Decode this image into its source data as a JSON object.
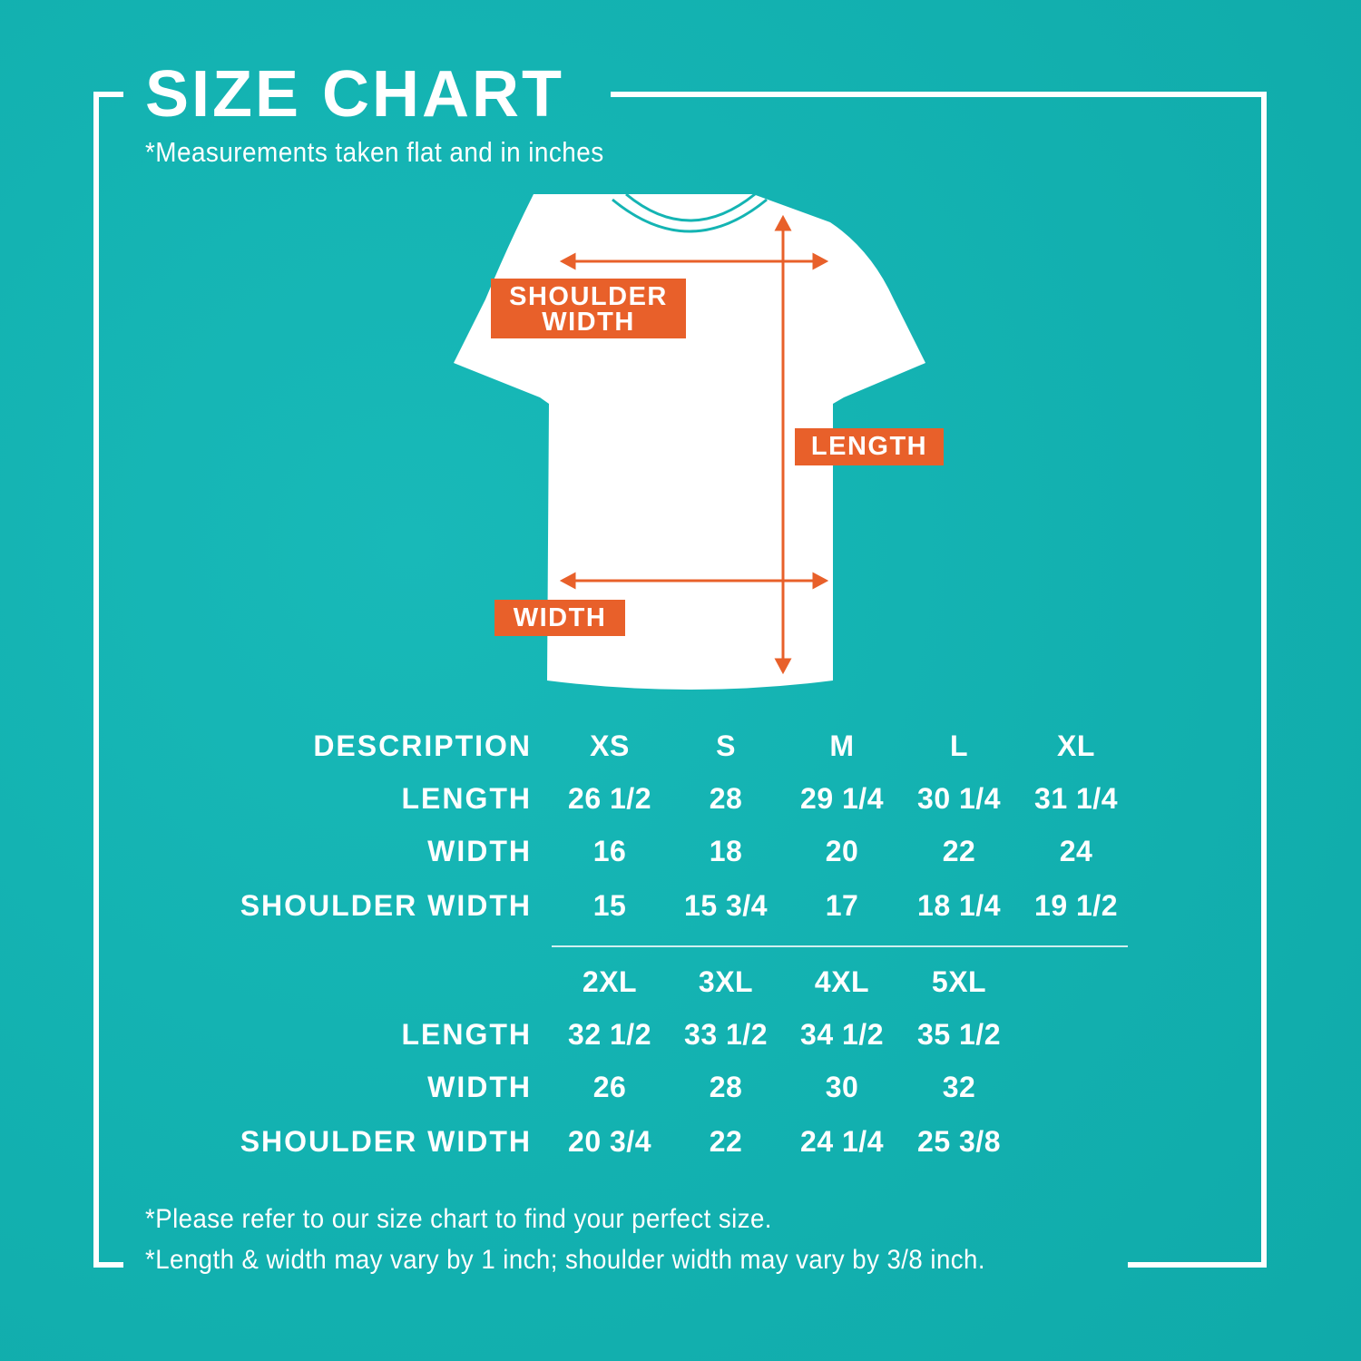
{
  "title": "SIZE CHART",
  "subtitle": "*Measurements taken flat and in inches",
  "colors": {
    "background": "#14b4b3",
    "accent": "#e8602a",
    "text": "#ffffff"
  },
  "diagram": {
    "shoulder_width_label_1": "SHOULDER",
    "shoulder_width_label_2": "WIDTH",
    "length_label": "LENGTH",
    "width_label": "WIDTH"
  },
  "table": {
    "description_header": "DESCRIPTION",
    "blocks": [
      {
        "sizes": [
          "XS",
          "S",
          "M",
          "L",
          "XL"
        ],
        "rows": [
          {
            "label": "LENGTH",
            "values": [
              "26 1/2",
              "28",
              "29 1/4",
              "30 1/4",
              "31 1/4"
            ]
          },
          {
            "label": "WIDTH",
            "values": [
              "16",
              "18",
              "20",
              "22",
              "24"
            ]
          },
          {
            "label": "SHOULDER WIDTH",
            "values": [
              "15",
              "15 3/4",
              "17",
              "18 1/4",
              "19 1/2"
            ]
          }
        ]
      },
      {
        "sizes": [
          "2XL",
          "3XL",
          "4XL",
          "5XL"
        ],
        "rows": [
          {
            "label": "LENGTH",
            "values": [
              "32 1/2",
              "33 1/2",
              "34 1/2",
              "35 1/2"
            ]
          },
          {
            "label": "WIDTH",
            "values": [
              "26",
              "28",
              "30",
              "32"
            ]
          },
          {
            "label": "SHOULDER WIDTH",
            "values": [
              "20 3/4",
              "22",
              "24 1/4",
              "25 3/8"
            ]
          }
        ]
      }
    ]
  },
  "notes": {
    "note_1": "*Please refer to our size chart to find your perfect size.",
    "note_2_before": "*Length & width may vary by 1 inch; shoulder width may vary by",
    "note_2_fraction": "3/8",
    "note_2_after": "inch."
  }
}
